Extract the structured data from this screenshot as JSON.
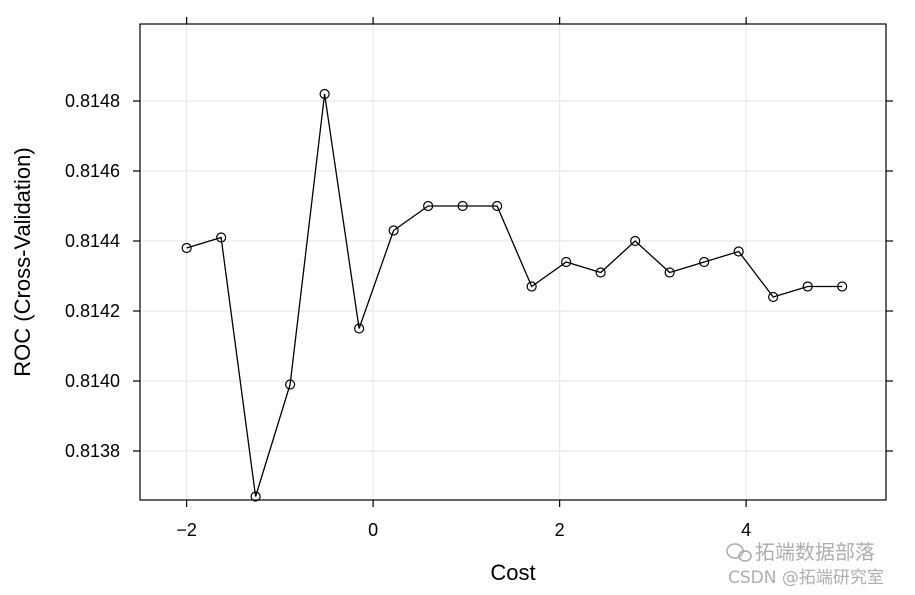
{
  "chart_data": {
    "type": "line",
    "xlabel": "Cost",
    "ylabel": "ROC (Cross-Validation)",
    "xlim": [
      -2.5,
      5.5
    ],
    "ylim": [
      0.81366,
      0.81502
    ],
    "xticks": [
      -2,
      0,
      2,
      4
    ],
    "xtick_labels": [
      "−2",
      "0",
      "2",
      "4"
    ],
    "yticks": [
      0.8138,
      0.814,
      0.8142,
      0.8144,
      0.8146,
      0.8148
    ],
    "ytick_labels": [
      "0.8138",
      "0.8140",
      "0.8142",
      "0.8144",
      "0.8146",
      "0.8148"
    ],
    "grid": true,
    "marker": "open-circle",
    "series": [
      {
        "x": [
          -2.0,
          -1.63,
          -1.26,
          -0.89,
          -0.52,
          -0.15,
          0.22,
          0.59,
          0.96,
          1.33,
          1.7,
          2.07,
          2.44,
          2.81,
          3.18,
          3.55,
          3.92,
          4.29,
          4.66,
          5.03
        ],
        "values": [
          0.81438,
          0.81441,
          0.81367,
          0.81399,
          0.81482,
          0.81415,
          0.81443,
          0.8145,
          0.8145,
          0.8145,
          0.81427,
          0.81434,
          0.81431,
          0.8144,
          0.81431,
          0.81434,
          0.81437,
          0.81424,
          0.81427,
          0.81427
        ]
      }
    ]
  },
  "watermark": {
    "line1": "拓端数据部落",
    "line2": "CSDN @拓端研究室"
  },
  "colors": {
    "line": "#000000",
    "grid": "#e6e6e6",
    "frame": "#000000"
  }
}
